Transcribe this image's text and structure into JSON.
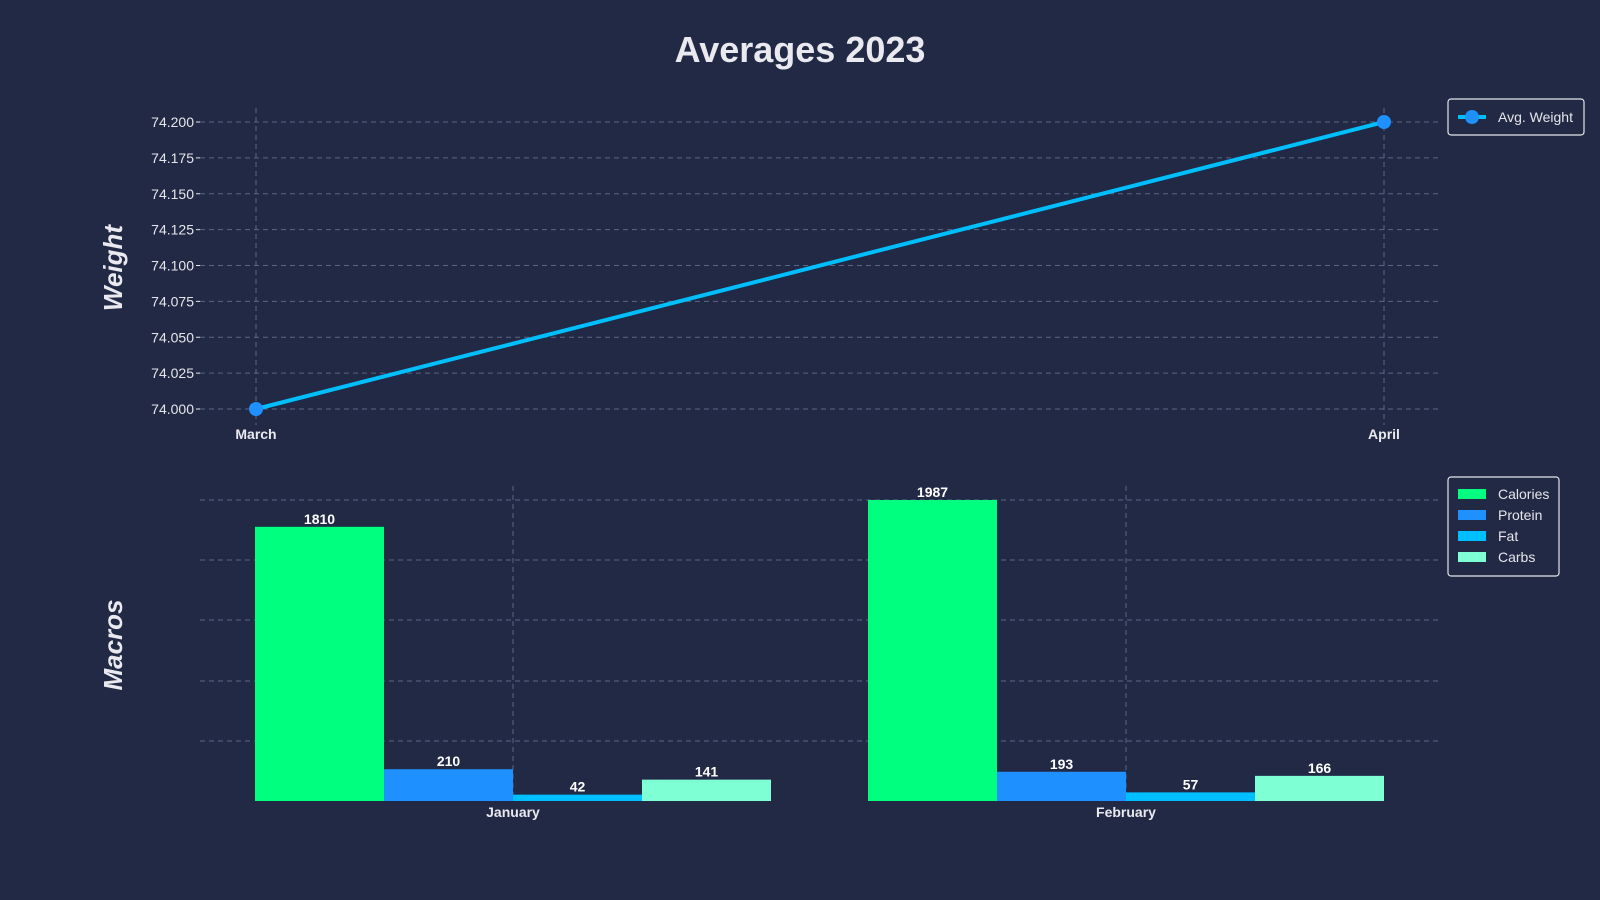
{
  "title": "Averages 2023",
  "chart_data": [
    {
      "type": "line",
      "ylabel": "Weight",
      "categories": [
        "March",
        "April"
      ],
      "series": [
        {
          "name": "Avg. Weight",
          "values": [
            74.0,
            74.2
          ],
          "color": "#00bfff",
          "marker_color": "#1e90ff"
        }
      ],
      "ylim": [
        73.98,
        74.21
      ],
      "yticks": [
        "74.000",
        "74.025",
        "74.050",
        "74.075",
        "74.100",
        "74.125",
        "74.150",
        "74.175",
        "74.200"
      ],
      "grid": true,
      "legend": "right"
    },
    {
      "type": "bar",
      "ylabel": "Macros",
      "categories": [
        "January",
        "February"
      ],
      "series": [
        {
          "name": "Calories",
          "values": [
            1810,
            1987
          ],
          "color": "#00ff7f"
        },
        {
          "name": "Protein",
          "values": [
            210,
            193
          ],
          "color": "#1e90ff"
        },
        {
          "name": "Fat",
          "values": [
            42,
            57
          ],
          "color": "#00bfff"
        },
        {
          "name": "Carbs",
          "values": [
            141,
            166
          ],
          "color": "#7fffd4"
        }
      ],
      "grid": true,
      "legend": "top-right"
    }
  ]
}
